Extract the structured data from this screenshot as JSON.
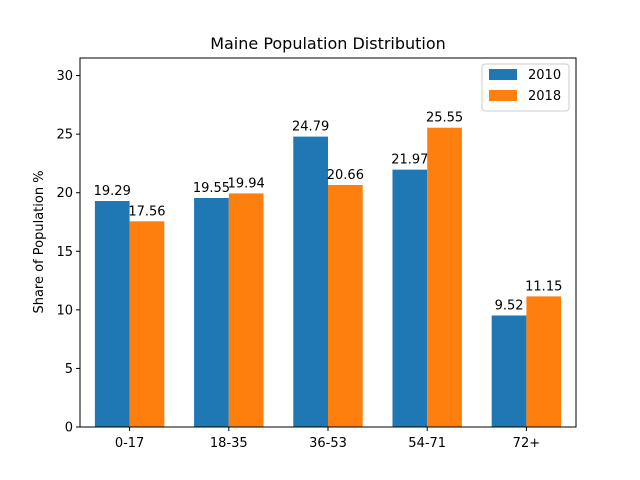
{
  "chart_data": {
    "type": "bar",
    "title": "Maine Population Distribution",
    "xlabel": "",
    "ylabel": "Share of Population %",
    "categories": [
      "0-17",
      "18-35",
      "36-53",
      "54-71",
      "72+"
    ],
    "series": [
      {
        "name": "2010",
        "color": "#1f77b4",
        "values": [
          19.29,
          19.55,
          24.79,
          21.97,
          9.52
        ]
      },
      {
        "name": "2018",
        "color": "#ff7f0e",
        "values": [
          17.56,
          19.94,
          20.66,
          25.55,
          11.15
        ]
      }
    ],
    "ylim": [
      0,
      31.5
    ],
    "yticks": [
      0,
      5,
      10,
      15,
      20,
      25,
      30
    ],
    "grid": false,
    "legend_position": "top-right",
    "data_labels": true
  }
}
